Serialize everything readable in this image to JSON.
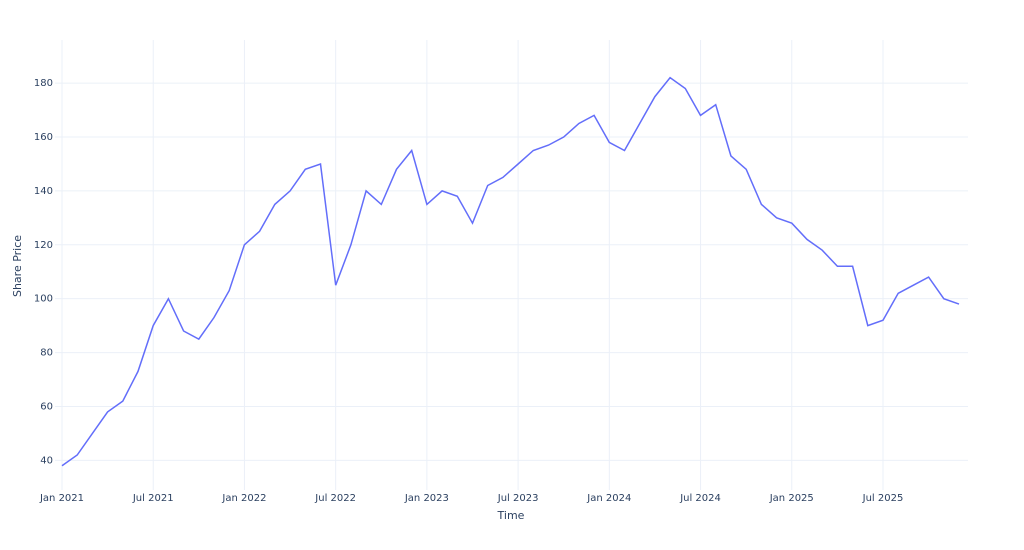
{
  "chart_data": {
    "type": "line",
    "x_label": "Time",
    "y_label": "Share Price",
    "x": [
      "2021-01",
      "2021-02",
      "2021-03",
      "2021-04",
      "2021-05",
      "2021-06",
      "2021-07",
      "2021-08",
      "2021-09",
      "2021-10",
      "2021-11",
      "2021-12",
      "2022-01",
      "2022-02",
      "2022-03",
      "2022-04",
      "2022-05",
      "2022-06",
      "2022-07",
      "2022-08",
      "2022-09",
      "2022-10",
      "2022-11",
      "2022-12",
      "2023-01",
      "2023-02",
      "2023-03",
      "2023-04",
      "2023-05",
      "2023-06",
      "2023-07",
      "2023-08",
      "2023-09",
      "2023-10",
      "2023-11",
      "2023-12",
      "2024-01",
      "2024-02",
      "2024-03",
      "2024-04",
      "2024-05",
      "2024-06",
      "2024-07",
      "2024-08",
      "2024-09",
      "2024-10",
      "2024-11",
      "2024-12",
      "2025-01",
      "2025-02",
      "2025-03",
      "2025-04",
      "2025-05",
      "2025-06",
      "2025-07",
      "2025-08",
      "2025-09",
      "2025-10",
      "2025-11",
      "2025-12"
    ],
    "series": [
      {
        "name": "Share Price",
        "color": "#636efa",
        "values": [
          38,
          42,
          50,
          58,
          62,
          73,
          90,
          100,
          88,
          85,
          93,
          103,
          120,
          125,
          135,
          140,
          148,
          150,
          105,
          120,
          140,
          135,
          148,
          155,
          135,
          140,
          138,
          128,
          142,
          145,
          150,
          155,
          157,
          160,
          165,
          168,
          158,
          155,
          165,
          175,
          182,
          178,
          168,
          172,
          153,
          148,
          135,
          130,
          128,
          122,
          118,
          112,
          112,
          90,
          92,
          102,
          105,
          108,
          100,
          98
        ]
      }
    ],
    "xlim": [
      "2021-01",
      "2025-12"
    ],
    "xticks": [
      {
        "value": "2021-01",
        "label": "Jan 2021"
      },
      {
        "value": "2021-07",
        "label": "Jul 2021"
      },
      {
        "value": "2022-01",
        "label": "Jan 2022"
      },
      {
        "value": "2022-07",
        "label": "Jul 2022"
      },
      {
        "value": "2023-01",
        "label": "Jan 2023"
      },
      {
        "value": "2023-07",
        "label": "Jul 2023"
      },
      {
        "value": "2024-01",
        "label": "Jan 2024"
      },
      {
        "value": "2024-07",
        "label": "Jul 2024"
      },
      {
        "value": "2025-01",
        "label": "Jan 2025"
      },
      {
        "value": "2025-07",
        "label": "Jul 2025"
      }
    ],
    "ylim": [
      29,
      196
    ],
    "yticks": [
      40,
      60,
      80,
      100,
      120,
      140,
      160,
      180
    ],
    "grid": true
  }
}
